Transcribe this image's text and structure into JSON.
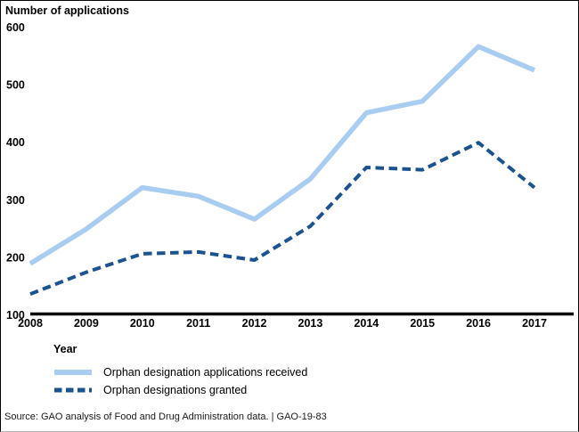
{
  "chart": {
    "y_axis_title": "Number of applications",
    "x_axis_title": "Year",
    "source": "Source: GAO analysis of Food and Drug Administration data.  |  GAO-19-83"
  },
  "chart_data": {
    "type": "line",
    "title": "Number of applications",
    "xlabel": "Year",
    "ylabel": "Number of applications",
    "x": [
      2008,
      2009,
      2010,
      2011,
      2012,
      2013,
      2014,
      2015,
      2016,
      2017
    ],
    "ylim": [
      100,
      600
    ],
    "yticks": [
      100,
      200,
      300,
      400,
      500,
      600
    ],
    "grid": false,
    "legend_position": "bottom-left",
    "series": [
      {
        "name": "Orphan designation applications received",
        "style": "solid",
        "color": "#a9cdf1",
        "values": [
          190,
          250,
          322,
          307,
          267,
          337,
          452,
          472,
          567,
          526
        ]
      },
      {
        "name": "Orphan designations granted",
        "style": "dashed",
        "color": "#1a5390",
        "values": [
          137,
          175,
          207,
          210,
          196,
          255,
          357,
          353,
          400,
          322
        ]
      }
    ],
    "axis_color": "#000000"
  }
}
